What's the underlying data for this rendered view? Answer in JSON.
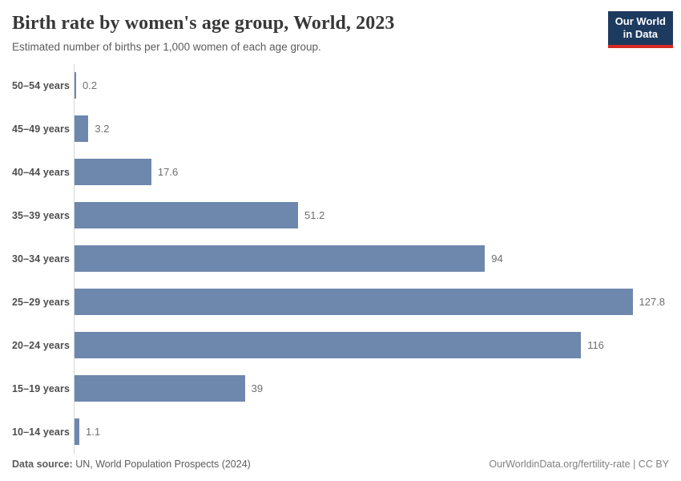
{
  "header": {
    "title": "Birth rate by women's age group, World, 2023",
    "subtitle": "Estimated number of births per 1,000 women of each age group.",
    "logo": {
      "line1": "Our World",
      "line2": "in Data"
    }
  },
  "chart_data": {
    "type": "bar",
    "orientation": "horizontal",
    "title": "Birth rate by women's age group, World, 2023",
    "xlabel": "",
    "ylabel": "",
    "categories": [
      "50–54 years",
      "45–49 years",
      "40–44 years",
      "35–39 years",
      "30–34 years",
      "25–29 years",
      "20–24 years",
      "15–19 years",
      "10–14 years"
    ],
    "values": [
      0.2,
      3.2,
      17.6,
      51.2,
      94,
      127.8,
      116,
      39,
      1.1
    ],
    "value_labels": [
      "0.2",
      "3.2",
      "17.6",
      "51.2",
      "94",
      "127.8",
      "116",
      "39",
      "1.1"
    ],
    "xlim": [
      0,
      140
    ],
    "grid": false,
    "legend": false,
    "bar_color": "#6e87ad",
    "axis_color": "#d7d7d7"
  },
  "footer": {
    "source_label": "Data source:",
    "source_text": " UN, World Population Prospects (2024)",
    "right_text": "OurWorldinData.org/fertility-rate | CC BY"
  },
  "colors": {
    "bar": "#6e87ad",
    "axis": "#d7d7d7",
    "logo_bg": "#1d3a5f",
    "logo_underline": "#d42b20",
    "title_text": "#383838",
    "subtitle_text": "#5b5b5b"
  }
}
